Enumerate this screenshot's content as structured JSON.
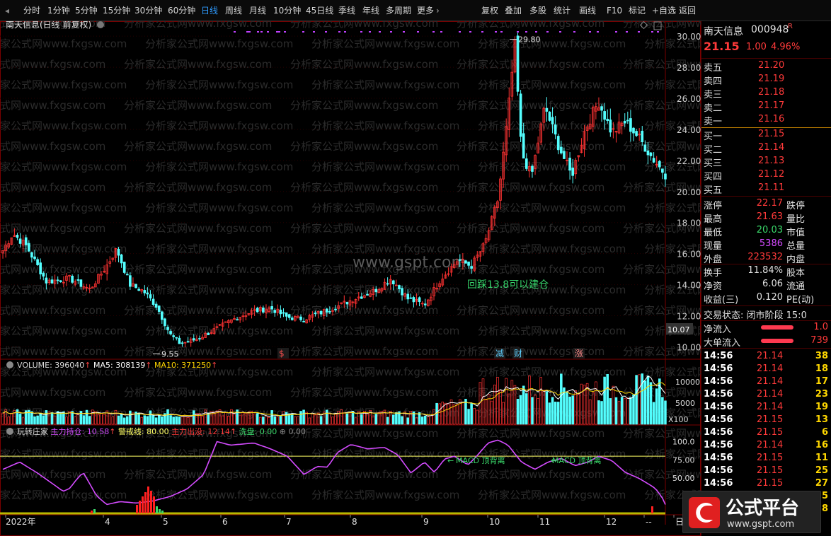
{
  "toolbar": {
    "periods": [
      "分时",
      "1分钟",
      "5分钟",
      "15分钟",
      "30分钟",
      "60分钟",
      "日线",
      "周线",
      "月线",
      "10分钟",
      "45日线",
      "季线",
      "年线",
      "多周期",
      "更多"
    ],
    "active_period": "日线",
    "tools": [
      "复权",
      "叠加",
      "多股",
      "统计",
      "画线",
      "F10",
      "标记",
      "+自选",
      "返回"
    ]
  },
  "chart": {
    "header": "南天信息(日线 前复权)",
    "watermark": "分析家公式网www.fxgsw.com",
    "site_watermark": "www.gspt.com",
    "price_axis": [
      "30.00",
      "28.00",
      "26.00",
      "24.00",
      "22.00",
      "20.00",
      "18.00",
      "16.00",
      "14.00",
      "12.00",
      "10.00"
    ],
    "price_range": [
      9.2,
      30.6
    ],
    "high_label": "29.80",
    "low_label": "9.55",
    "last_price_label": "10.07",
    "annotation": "回踩13.8可以建仓",
    "event_marks": [
      "$",
      "减",
      "财",
      "涨"
    ],
    "volume": {
      "name": "VOLUME",
      "value": "396040",
      "ma5_label": "MA5:",
      "ma5": "308139",
      "ma10_label": "MA10:",
      "ma10": "371250",
      "axis": [
        "10000",
        "5000"
      ],
      "unit": "X100",
      "range": [
        0,
        14000
      ]
    },
    "indicator": {
      "name": "玩转庄家",
      "main_hold_label": "主力持仓:",
      "main_hold": "10.58",
      "warn_label": "警戒线:",
      "warn": "80.00",
      "exit_label": "主力出没:",
      "exit": "12.14",
      "wash_label": "洗盘:",
      "wash": "0.00",
      "extra": "0.00",
      "axis": [
        "100.0",
        "75.00",
        "50.00"
      ],
      "range": [
        0,
        110
      ],
      "warn_level": 80,
      "divergence_labels": [
        "MACD 顶背离",
        "MACD 顶背离"
      ]
    },
    "time_axis": [
      "2022年",
      "4",
      "5",
      "6",
      "7",
      "8",
      "9",
      "10",
      "11",
      "12",
      "--",
      "日"
    ],
    "colors": {
      "up": "#ff3232",
      "down": "#54ffff",
      "ma5": "#ffffff",
      "ma10": "#ffd700",
      "indicator": "#d44bff",
      "warn": "#ffff66"
    }
  },
  "quote": {
    "name": "南天信息",
    "code": "000948",
    "badge": "R",
    "price": "21.15",
    "change": "1.00",
    "pct": "4.96%",
    "asks": [
      {
        "label": "卖五",
        "price": "21.20"
      },
      {
        "label": "卖四",
        "price": "21.19"
      },
      {
        "label": "卖三",
        "price": "21.18"
      },
      {
        "label": "卖二",
        "price": "21.17"
      },
      {
        "label": "卖一",
        "price": "21.16"
      }
    ],
    "bids": [
      {
        "label": "买一",
        "price": "21.15"
      },
      {
        "label": "买二",
        "price": "21.14"
      },
      {
        "label": "买三",
        "price": "21.13"
      },
      {
        "label": "买四",
        "price": "21.12"
      },
      {
        "label": "买五",
        "price": "21.11"
      }
    ],
    "stats": [
      {
        "label": "涨停",
        "value": "22.17",
        "label2": "跌停"
      },
      {
        "label": "最高",
        "value": "21.63",
        "label2": "量比"
      },
      {
        "label": "最低",
        "value": "20.03",
        "label2": "市值"
      },
      {
        "label": "现量",
        "value": "5386",
        "label2": "总量"
      },
      {
        "label": "外盘",
        "value": "223532",
        "label2": "内盘"
      }
    ],
    "stats2": [
      {
        "label": "换手",
        "value": "11.84%",
        "label2": "股本"
      },
      {
        "label": "净资",
        "value": "6.06",
        "label2": "流通"
      },
      {
        "label": "收益(三)",
        "value": "0.120",
        "label2": "PE(动)"
      }
    ],
    "trade_status": "交易状态: 闭市阶段 15:0",
    "flows": [
      {
        "label": "净流入",
        "value": "1.0"
      },
      {
        "label": "大单流入",
        "value": "739"
      }
    ],
    "ticks": [
      {
        "time": "14:56",
        "price": "21.14",
        "vol": "38"
      },
      {
        "time": "14:56",
        "price": "21.14",
        "vol": "18"
      },
      {
        "time": "14:56",
        "price": "21.14",
        "vol": "17"
      },
      {
        "time": "14:56",
        "price": "21.14",
        "vol": "23"
      },
      {
        "time": "14:56",
        "price": "21.14",
        "vol": "19"
      },
      {
        "time": "14:56",
        "price": "21.15",
        "vol": "13"
      },
      {
        "time": "14:56",
        "price": "21.15",
        "vol": "6"
      },
      {
        "time": "14:56",
        "price": "21.14",
        "vol": "16"
      },
      {
        "time": "14:56",
        "price": "21.15",
        "vol": "11"
      },
      {
        "time": "14:56",
        "price": "21.15",
        "vol": "25"
      },
      {
        "time": "14:56",
        "price": "21.15",
        "vol": "27"
      },
      {
        "time": "14:56",
        "price": "21.14",
        "vol": "5"
      },
      {
        "time": "14:56",
        "price": "21.15",
        "vol": "28"
      }
    ]
  },
  "logo": {
    "text": "公式平台",
    "url": "www.gspt.com"
  }
}
